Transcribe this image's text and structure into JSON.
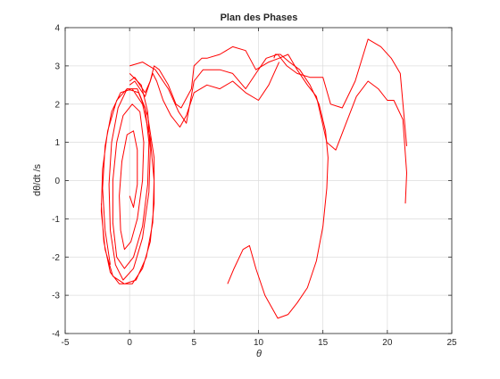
{
  "chart_data": {
    "type": "line",
    "title": "Plan des Phases",
    "xlabel": "θ",
    "ylabel": "dθ/dt /s",
    "xlim": [
      -5,
      25
    ],
    "ylim": [
      -4,
      4
    ],
    "xticks": [
      "-5",
      "0",
      "5",
      "10",
      "15",
      "20",
      "25"
    ],
    "yticks": [
      "-4",
      "-3",
      "-2",
      "-1",
      "0",
      "1",
      "2",
      "3",
      "4"
    ],
    "grid": true,
    "legend": "none",
    "colors": {
      "line": "#ff0000",
      "axes": "#262626",
      "grid": "#dcdcdc",
      "background": "#ffffff"
    },
    "series": [
      {
        "x": [
          0.0,
          0.9,
          1.4,
          1.6,
          1.5,
          1.0,
          0.3,
          -0.5,
          -1.1,
          -1.5,
          -1.6,
          -1.4,
          -0.9,
          -0.2,
          0.6,
          1.2,
          1.5,
          1.4,
          1.0,
          0.3,
          -0.4,
          -1.0,
          -1.3,
          -1.3,
          -1.0,
          -0.5,
          0.2,
          0.8,
          1.1,
          1.0,
          0.6,
          0.1,
          -0.4,
          -0.7,
          -0.8,
          -0.6,
          -0.2,
          0.3,
          0.6,
          0.6,
          0.3,
          0.0
        ],
        "y": [
          2.8,
          2.5,
          1.8,
          0.8,
          -0.3,
          -1.5,
          -2.3,
          -2.6,
          -2.2,
          -1.3,
          -0.1,
          1.0,
          1.9,
          2.4,
          2.4,
          1.9,
          1.0,
          -0.1,
          -1.2,
          -2.0,
          -2.3,
          -2.0,
          -1.1,
          0.0,
          1.0,
          1.7,
          2.0,
          1.8,
          1.0,
          0.0,
          -1.0,
          -1.6,
          -1.8,
          -1.3,
          -0.4,
          0.5,
          1.2,
          1.3,
          0.8,
          -0.1,
          -0.7,
          -0.4
        ]
      },
      {
        "x": [
          -2.2,
          -2.0,
          -1.5,
          -0.8,
          0.2,
          1.0,
          1.6,
          1.9,
          1.9,
          1.4,
          0.7,
          -0.2,
          -1.0,
          -1.7,
          -2.1,
          -2.2,
          -1.9,
          -1.3,
          -0.4,
          0.5,
          1.3,
          1.8,
          1.9,
          1.6,
          1.0,
          0.2,
          -0.7,
          -1.4,
          -1.9,
          -2.1,
          -1.9,
          -1.5
        ],
        "y": [
          -0.6,
          -1.6,
          -2.4,
          -2.7,
          -2.7,
          -2.3,
          -1.6,
          -0.6,
          0.6,
          1.7,
          2.3,
          2.4,
          2.1,
          1.3,
          0.3,
          -0.8,
          -1.8,
          -2.5,
          -2.7,
          -2.6,
          -2.0,
          -1.1,
          0.0,
          1.1,
          2.0,
          2.4,
          2.3,
          1.8,
          0.9,
          -0.2,
          -1.3,
          -2.2
        ]
      },
      {
        "x": [
          0.0,
          0.4,
          0.8,
          1.2,
          1.6,
          1.9,
          2.3,
          3.0,
          3.6,
          4.0,
          4.8,
          5.0,
          5.6,
          6.0,
          7.0,
          8.0,
          9.0,
          9.8,
          10.8,
          11.6,
          12.3,
          13.0,
          13.8,
          14.5,
          15.3,
          16.0,
          16.8,
          17.6,
          18.5,
          19.3,
          20.0,
          20.5,
          21.2,
          21.5,
          21.4
        ],
        "y": [
          2.6,
          2.7,
          2.5,
          2.3,
          2.6,
          3.0,
          2.9,
          2.5,
          2.0,
          1.9,
          2.4,
          3.0,
          3.2,
          3.2,
          3.3,
          3.5,
          3.4,
          2.9,
          3.1,
          3.2,
          3.3,
          2.9,
          2.5,
          2.2,
          1.0,
          0.8,
          1.5,
          2.2,
          2.6,
          2.4,
          2.1,
          2.1,
          1.6,
          0.2,
          -0.6
        ]
      },
      {
        "x": [
          0.0,
          1.0,
          2.0,
          3.0,
          3.8,
          4.4,
          5.0,
          5.7,
          7.0,
          8.0,
          9.0,
          9.8,
          10.6,
          11.5,
          12.2,
          13.0,
          14.0,
          15.0,
          15.6,
          16.5,
          17.5,
          18.5,
          19.5,
          20.3,
          21.0,
          21.5
        ],
        "y": [
          3.0,
          3.1,
          2.9,
          2.4,
          1.8,
          1.5,
          2.6,
          2.9,
          2.9,
          2.8,
          2.4,
          2.8,
          3.2,
          3.3,
          3.0,
          2.8,
          2.7,
          2.7,
          2.0,
          1.9,
          2.6,
          3.7,
          3.5,
          3.2,
          2.8,
          0.9
        ]
      },
      {
        "x": [
          7.6,
          8.1,
          8.8,
          9.3,
          9.8,
          10.5,
          11.5,
          12.3,
          13.0,
          13.8,
          14.5,
          15.0,
          15.3,
          15.4,
          15.2,
          14.7,
          14.0,
          13.2,
          12.4,
          11.7,
          11.3,
          11.2
        ],
        "y": [
          -2.7,
          -2.3,
          -1.8,
          -1.7,
          -2.3,
          -3.0,
          -3.6,
          -3.5,
          -3.2,
          -2.8,
          -2.1,
          -1.2,
          -0.2,
          0.6,
          1.3,
          2.0,
          2.5,
          2.9,
          3.1,
          3.3,
          3.3,
          3.2
        ]
      },
      {
        "x": [
          0.0,
          0.4,
          0.8,
          1.2,
          1.5,
          1.8,
          2.1,
          2.6,
          3.2,
          3.9,
          4.4,
          5.0,
          6.0,
          7.0,
          8.0,
          9.0,
          10.0,
          10.8,
          11.6
        ],
        "y": [
          2.5,
          2.6,
          2.4,
          2.2,
          2.5,
          2.8,
          2.6,
          2.1,
          1.7,
          1.4,
          1.7,
          2.3,
          2.5,
          2.4,
          2.6,
          2.3,
          2.1,
          2.5,
          3.1
        ]
      }
    ]
  }
}
